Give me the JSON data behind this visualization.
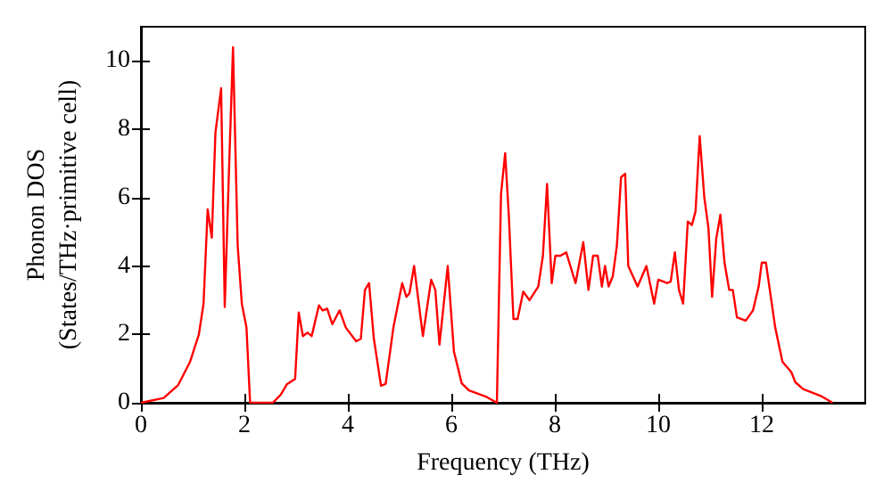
{
  "chart_data": {
    "type": "line",
    "xlabel": "Frequency (THz)",
    "ylabel": "Phonon DOS\n(States/THz·primitive cell)",
    "xlim": [
      0,
      14
    ],
    "ylim": [
      0,
      11
    ],
    "xticks": [
      0,
      2,
      4,
      6,
      8,
      10,
      12
    ],
    "yticks": [
      0,
      2,
      4,
      6,
      8,
      10
    ],
    "marker": "none",
    "line_style": "solid",
    "series": [
      {
        "color": "#ff0000",
        "x": [
          0,
          0.44,
          0.72,
          0.95,
          1.12,
          1.21,
          1.29,
          1.37,
          1.44,
          1.55,
          1.62,
          1.7,
          1.78,
          1.87,
          1.95,
          2.04,
          2.11,
          2.55,
          2.7,
          2.82,
          2.98,
          3.05,
          3.13,
          3.22,
          3.3,
          3.44,
          3.51,
          3.6,
          3.7,
          3.84,
          3.96,
          4.16,
          4.25,
          4.33,
          4.41,
          4.5,
          4.64,
          4.73,
          4.88,
          5.05,
          5.13,
          5.19,
          5.28,
          5.45,
          5.61,
          5.69,
          5.77,
          5.93,
          6.05,
          6.2,
          6.34,
          6.68,
          6.88,
          6.96,
          7.04,
          7.11,
          7.2,
          7.28,
          7.39,
          7.51,
          7.68,
          7.77,
          7.85,
          7.94,
          8.01,
          8.11,
          8.22,
          8.4,
          8.55,
          8.65,
          8.74,
          8.83,
          8.91,
          8.97,
          9.04,
          9.12,
          9.2,
          9.28,
          9.36,
          9.42,
          9.6,
          9.77,
          9.92,
          10.0,
          10.17,
          10.24,
          10.32,
          10.4,
          10.48,
          10.57,
          10.65,
          10.72,
          10.8,
          10.89,
          10.97,
          11.04,
          11.12,
          11.2,
          11.28,
          11.37,
          11.44,
          11.52,
          11.69,
          11.83,
          11.94,
          12.0,
          12.08,
          12.26,
          12.4,
          12.57,
          12.65,
          12.8,
          13.14,
          13.37
        ],
        "values": [
          0,
          0.14,
          0.52,
          1.2,
          2.0,
          2.9,
          5.66,
          4.83,
          7.9,
          9.2,
          2.8,
          6.7,
          10.4,
          4.6,
          2.9,
          2.2,
          0,
          0,
          0.23,
          0.54,
          0.7,
          2.64,
          1.95,
          2.05,
          1.95,
          2.85,
          2.7,
          2.75,
          2.3,
          2.7,
          2.2,
          1.8,
          1.87,
          3.3,
          3.5,
          1.9,
          0.5,
          0.55,
          2.2,
          3.5,
          3.1,
          3.2,
          4.0,
          1.95,
          3.6,
          3.3,
          1.7,
          4.0,
          1.5,
          0.57,
          0.36,
          0.17,
          0,
          6.1,
          7.3,
          5.5,
          2.45,
          2.45,
          3.25,
          3.0,
          3.4,
          4.3,
          6.4,
          3.5,
          4.3,
          4.3,
          4.4,
          3.5,
          4.7,
          3.3,
          4.3,
          4.3,
          3.4,
          4.0,
          3.4,
          3.7,
          4.6,
          6.6,
          6.7,
          4.0,
          3.4,
          4.0,
          2.9,
          3.6,
          3.5,
          3.55,
          4.4,
          3.3,
          2.9,
          5.3,
          5.2,
          5.6,
          7.8,
          6.0,
          5.1,
          3.1,
          4.8,
          5.5,
          4.1,
          3.3,
          3.3,
          2.5,
          2.4,
          2.7,
          3.4,
          4.1,
          4.1,
          2.2,
          1.2,
          0.9,
          0.6,
          0.4,
          0.2,
          0
        ]
      }
    ]
  }
}
